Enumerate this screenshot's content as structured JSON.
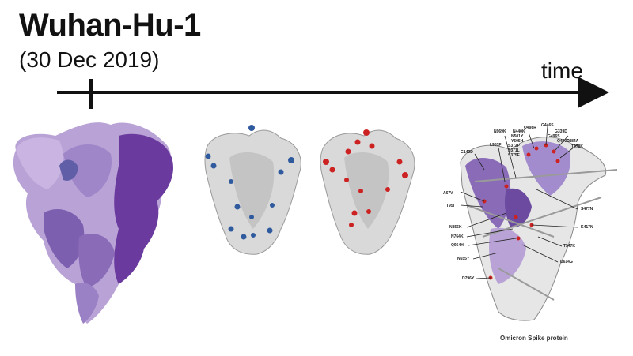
{
  "header": {
    "title": "Wuhan-Hu-1",
    "date": "(30 Dec 2019)"
  },
  "timeline": {
    "label": "time"
  },
  "colors": {
    "purple_light": "#b9a3d6",
    "purple_mid": "#8a6bb8",
    "purple_dark": "#5a2a8a",
    "mutation_blue": "#2f5a9e",
    "mutation_red": "#cc2222"
  },
  "omicron": {
    "caption": "Omicron Spike protein",
    "mutations": [
      "G446S",
      "Q498R",
      "N440K",
      "N501Y",
      "Y505H",
      "S373P",
      "S371L",
      "S375F",
      "G339D",
      "G496S",
      "Q493R",
      "E484A",
      "T478K",
      "N969K",
      "L981F",
      "G142D",
      "A67V",
      "T95I",
      "N856K",
      "N764K",
      "Q954H",
      "N655Y",
      "D796Y",
      "S477N",
      "K417N",
      "T547K",
      "D614G"
    ]
  }
}
